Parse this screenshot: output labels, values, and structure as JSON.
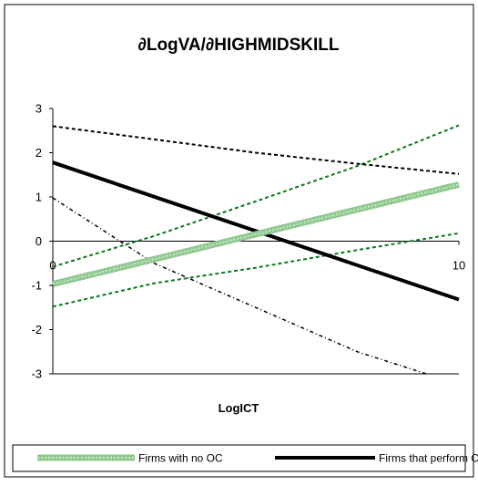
{
  "chart_data": {
    "type": "line",
    "title": "∂LogVA/∂HIGHMIDSKILL",
    "xlabel": "LogICT",
    "ylabel": "",
    "xlim": [
      0,
      10
    ],
    "ylim": [
      -3,
      3
    ],
    "x_ticks": [
      0,
      10
    ],
    "y_ticks": [
      3,
      2,
      1,
      0,
      -1,
      -2,
      -3
    ],
    "grid": false,
    "legend_position": "bottom",
    "series": [
      {
        "name": "Firms with no OC",
        "legend": true,
        "color": "#90c890",
        "style": "thick-dotted",
        "x": [
          0,
          10
        ],
        "y": [
          -0.97,
          1.28
        ]
      },
      {
        "name": "Firms that perform OC",
        "legend": true,
        "color": "#000000",
        "style": "thick-solid",
        "x": [
          0,
          10
        ],
        "y": [
          1.78,
          -1.32
        ]
      },
      {
        "name": "",
        "legend": false,
        "color": "#0a7a1a",
        "style": "dotted",
        "x": [
          0,
          2.5,
          5,
          7.5,
          10
        ],
        "y": [
          -0.58,
          0.12,
          0.9,
          1.7,
          2.62
        ]
      },
      {
        "name": "",
        "legend": false,
        "color": "#0a7a1a",
        "style": "dotted",
        "x": [
          0,
          2.5,
          5,
          7.5,
          10
        ],
        "y": [
          -1.48,
          -0.95,
          -0.6,
          -0.2,
          0.18
        ]
      },
      {
        "name": "",
        "legend": false,
        "color": "#000000",
        "style": "dotted",
        "x": [
          0,
          2.5,
          5,
          7.5,
          10
        ],
        "y": [
          2.6,
          2.3,
          2.0,
          1.75,
          1.52
        ]
      },
      {
        "name": "",
        "legend": false,
        "color": "#000000",
        "style": "dash-dot",
        "x": [
          0,
          2.5,
          5,
          7.5,
          9.2
        ],
        "y": [
          0.98,
          -0.5,
          -1.5,
          -2.5,
          -3.0
        ]
      }
    ]
  }
}
